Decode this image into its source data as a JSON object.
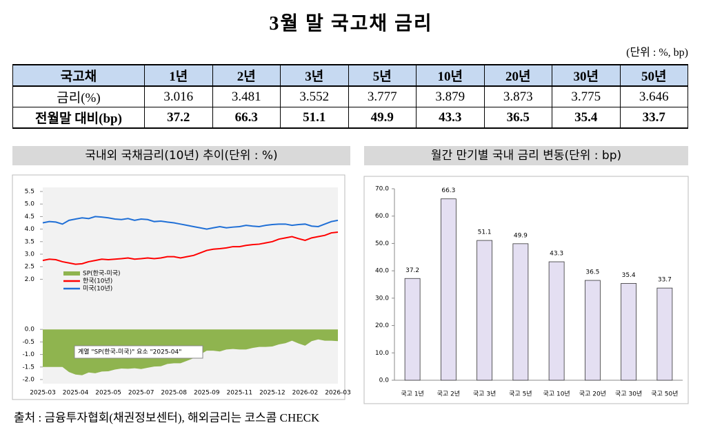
{
  "header": {
    "title": "3월 말 국고채 금리",
    "unit": "(단위 : %, bp)"
  },
  "table": {
    "header": [
      "국고채",
      "1년",
      "2년",
      "3년",
      "5년",
      "10년",
      "20년",
      "30년",
      "50년"
    ],
    "rows": [
      [
        "금리(%)",
        3.016,
        3.481,
        3.552,
        3.777,
        3.879,
        3.873,
        3.775,
        3.646
      ],
      [
        "전월말 대비(bp)",
        37.2,
        66.3,
        51.1,
        49.9,
        43.3,
        36.5,
        35.4,
        33.7
      ]
    ]
  },
  "sections": [
    "국내외 국채금리(10년) 추이(단위 : %)",
    "월간 만기별 국내 금리 변동(단위 : bp)"
  ],
  "chart_data": [
    {
      "type": "line",
      "categories": [
        "2025-03",
        null,
        null,
        null,
        null,
        "2025-04",
        null,
        null,
        null,
        null,
        "2025-05",
        null,
        null,
        null,
        null,
        "2025-07",
        null,
        null,
        null,
        null,
        "2025-08",
        null,
        null,
        null,
        null,
        "2025-09",
        null,
        null,
        null,
        null,
        "2025-11",
        null,
        null,
        null,
        null,
        "2025-12",
        null,
        null,
        null,
        null,
        "2026-02",
        null,
        null,
        null,
        null,
        "2026-03"
      ],
      "series": [
        {
          "name": "SP(한국-미국)",
          "color": "#8fb44f",
          "kind": "area",
          "values": [
            -1.5,
            -1.5,
            -1.5,
            -1.5,
            -1.7,
            -1.8,
            -1.83,
            -1.72,
            -1.75,
            -1.68,
            -1.67,
            -1.6,
            -1.56,
            -1.57,
            -1.55,
            -1.58,
            -1.53,
            -1.48,
            -1.47,
            -1.38,
            -1.35,
            -1.35,
            -1.25,
            -1.15,
            -1.0,
            -0.85,
            -0.85,
            -0.88,
            -0.8,
            -0.78,
            -0.8,
            -0.8,
            -0.74,
            -0.7,
            -0.7,
            -0.68,
            -0.6,
            -0.55,
            -0.45,
            -0.56,
            -0.65,
            -0.47,
            -0.4,
            -0.45,
            -0.45,
            -0.47
          ]
        },
        {
          "name": "한국(10년)",
          "color": "#ff0000",
          "kind": "line",
          "values": [
            2.75,
            2.8,
            2.78,
            2.7,
            2.65,
            2.6,
            2.62,
            2.7,
            2.75,
            2.8,
            2.78,
            2.8,
            2.82,
            2.85,
            2.8,
            2.82,
            2.85,
            2.82,
            2.85,
            2.9,
            2.9,
            2.85,
            2.9,
            2.95,
            3.05,
            3.15,
            3.2,
            3.22,
            3.25,
            3.3,
            3.3,
            3.35,
            3.38,
            3.4,
            3.45,
            3.5,
            3.6,
            3.65,
            3.7,
            3.62,
            3.55,
            3.65,
            3.7,
            3.75,
            3.85,
            3.88
          ]
        },
        {
          "name": "미국(10년)",
          "color": "#1f6fd6",
          "kind": "line",
          "values": [
            4.25,
            4.3,
            4.28,
            4.2,
            4.35,
            4.4,
            4.45,
            4.42,
            4.5,
            4.48,
            4.45,
            4.4,
            4.38,
            4.42,
            4.35,
            4.4,
            4.38,
            4.3,
            4.32,
            4.28,
            4.25,
            4.2,
            4.15,
            4.1,
            4.05,
            4.0,
            4.05,
            4.1,
            4.05,
            4.08,
            4.1,
            4.15,
            4.12,
            4.1,
            4.15,
            4.18,
            4.2,
            4.2,
            4.15,
            4.18,
            4.2,
            4.12,
            4.1,
            4.2,
            4.3,
            4.35
          ]
        }
      ],
      "ylim": [
        -2,
        5.5
      ],
      "yticks": [
        {
          "value": 5.5,
          "label": "5.5"
        },
        {
          "value": 5,
          "label": "5.0"
        },
        {
          "value": 4.5,
          "label": "4.5"
        },
        {
          "value": 4,
          "label": "4.0"
        },
        {
          "value": 3.5,
          "label": "3.5"
        },
        {
          "value": 3,
          "label": "3.0"
        },
        {
          "value": 2.5,
          "label": "2.5"
        },
        {
          "value": 2,
          "label": "2.0"
        },
        {
          "value": 0,
          "label": "0.0"
        },
        {
          "value": -0.5,
          "label": "-0.5"
        },
        {
          "value": -1,
          "label": "-1.0"
        },
        {
          "value": -1.5,
          "label": "-1.5"
        },
        {
          "value": -2,
          "label": "-2.0"
        }
      ],
      "annotation": "계열 \"SP(한국-미국)\" 요소 \"2025-04\"",
      "legend": "left"
    },
    {
      "type": "bar",
      "color": "#e4dff2",
      "categories": [
        "국고 1년",
        "국고 2년",
        "국고 3년",
        "국고 5년",
        "국고 10년",
        "국고 20년",
        "국고 30년",
        "국고 50년"
      ],
      "values": [
        37.2,
        66.3,
        51.1,
        49.9,
        43.3,
        36.5,
        35.4,
        33.7
      ],
      "ylim": [
        0,
        70
      ],
      "yticks": [
        {
          "value": 0,
          "label": "0.0"
        },
        {
          "value": 10,
          "label": "10.0"
        },
        {
          "value": 20,
          "label": "20.0"
        },
        {
          "value": 30,
          "label": "30.0"
        },
        {
          "value": 40,
          "label": "40.0"
        },
        {
          "value": 50,
          "label": "50.0"
        },
        {
          "value": 60,
          "label": "60.0"
        },
        {
          "value": 70,
          "label": "70.0"
        }
      ],
      "grid": false
    }
  ],
  "source": "출처 : 금융투자협회(채권정보센터), 해외금리는 코스콤 CHECK"
}
